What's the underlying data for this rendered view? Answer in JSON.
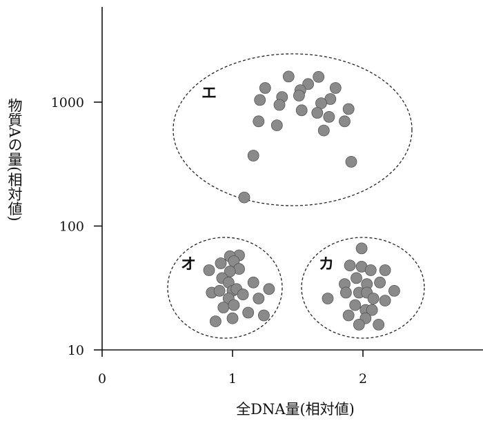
{
  "chart_data": {
    "type": "scatter",
    "title": "",
    "xlabel": "全DNA量(相対値)",
    "ylabel": "物質Aの量(相対値)",
    "x_scale": "linear",
    "y_scale": "log",
    "xlim": [
      0,
      2.9
    ],
    "ylim": [
      10,
      5000
    ],
    "x_ticks": [
      0,
      1,
      2
    ],
    "x_tick_labels": [
      "0",
      "1",
      "2"
    ],
    "y_ticks": [
      10,
      100,
      1000
    ],
    "y_tick_labels": [
      "10",
      "100",
      "1000"
    ],
    "grid": false,
    "point_color": "#8a8a8a",
    "groups": [
      {
        "label": "エ",
        "points": [
          [
            1.43,
            1610
          ],
          [
            1.66,
            1600
          ],
          [
            1.25,
            1300
          ],
          [
            1.58,
            1400
          ],
          [
            1.52,
            1250
          ],
          [
            1.79,
            1300
          ],
          [
            1.38,
            1100
          ],
          [
            1.75,
            1060
          ],
          [
            1.21,
            1040
          ],
          [
            1.51,
            1130
          ],
          [
            1.36,
            950
          ],
          [
            1.68,
            980
          ],
          [
            1.89,
            880
          ],
          [
            1.53,
            860
          ],
          [
            1.65,
            820
          ],
          [
            1.74,
            760
          ],
          [
            1.2,
            700
          ],
          [
            1.86,
            700
          ],
          [
            1.34,
            650
          ],
          [
            1.7,
            590
          ],
          [
            1.16,
            370
          ],
          [
            1.91,
            330
          ],
          [
            1.09,
            170
          ]
        ]
      },
      {
        "label": "オ",
        "points": [
          [
            1.05,
            58
          ],
          [
            0.98,
            57
          ],
          [
            1.01,
            52
          ],
          [
            0.91,
            50
          ],
          [
            0.82,
            44
          ],
          [
            1.05,
            45
          ],
          [
            0.98,
            43
          ],
          [
            0.92,
            38
          ],
          [
            0.97,
            35
          ],
          [
            1.16,
            35
          ],
          [
            0.84,
            29
          ],
          [
            0.9,
            30
          ],
          [
            1.0,
            30
          ],
          [
            1.03,
            31
          ],
          [
            1.08,
            28
          ],
          [
            1.28,
            31
          ],
          [
            0.97,
            26
          ],
          [
            1.2,
            26
          ],
          [
            0.93,
            22
          ],
          [
            1.01,
            23
          ],
          [
            1.12,
            20
          ],
          [
            1.24,
            19
          ],
          [
            0.87,
            17
          ],
          [
            1.0,
            18
          ]
        ]
      },
      {
        "label": "カ",
        "points": [
          [
            1.99,
            66
          ],
          [
            1.9,
            48
          ],
          [
            1.99,
            47
          ],
          [
            2.06,
            44
          ],
          [
            2.17,
            44
          ],
          [
            1.95,
            38
          ],
          [
            1.86,
            34
          ],
          [
            2.03,
            34
          ],
          [
            2.13,
            35
          ],
          [
            1.87,
            29
          ],
          [
            1.97,
            29
          ],
          [
            2.03,
            29
          ],
          [
            2.24,
            30
          ],
          [
            1.73,
            26
          ],
          [
            2.08,
            26
          ],
          [
            2.17,
            25
          ],
          [
            1.94,
            23
          ],
          [
            2.02,
            21
          ],
          [
            2.07,
            21
          ],
          [
            1.89,
            19
          ],
          [
            2.02,
            18
          ],
          [
            1.97,
            16
          ],
          [
            2.12,
            16
          ]
        ]
      }
    ]
  }
}
